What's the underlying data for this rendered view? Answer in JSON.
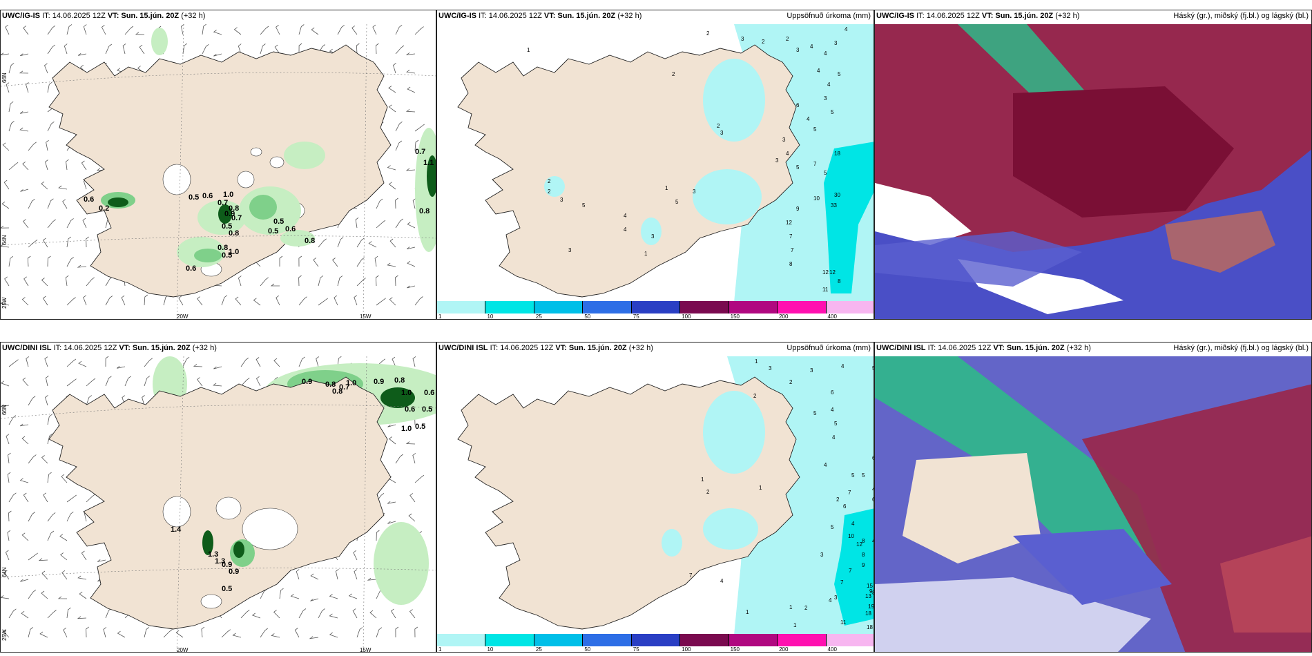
{
  "panels": {
    "p1": {
      "model": "UWC/IG-IS",
      "it": "IT: 14.06.2025 12Z",
      "vt": "VT: Sun. 15.jún. 20Z",
      "lead": "(+32 h)"
    },
    "p2": {
      "model": "UWC/IG-IS",
      "it": "IT: 14.06.2025 12Z",
      "vt": "VT: Sun. 15.jún. 20Z",
      "lead": "(+32 h)",
      "title": "Uppsöfnuð úrkoma (mm)"
    },
    "p3": {
      "model": "UWC/IG-IS",
      "it": "IT: 14.06.2025 12Z",
      "vt": "VT: Sun. 15.jún. 20Z",
      "lead": "(+32 h)",
      "title": "Háský (gr.), miðský (fj.bl.) og lágský (bl.)"
    },
    "p4": {
      "model": "UWC/DINI ISL",
      "it": "IT: 14.06.2025 12Z",
      "vt": "VT: Sun. 15.jún. 20Z",
      "lead": "(+32 h)"
    },
    "p5": {
      "model": "UWC/DINI ISL",
      "it": "IT: 14.06.2025 12Z",
      "vt": "VT: Sun. 15.jún. 20Z",
      "lead": "(+32 h)",
      "title": "Uppsöfnuð úrkoma (mm)"
    },
    "p6": {
      "model": "UWC/DINI ISL",
      "it": "IT: 14.06.2025 12Z",
      "vt": "VT: Sun. 15.jún. 20Z",
      "lead": "(+32 h)",
      "title": "Háský (gr.), miðský (fj.bl.) og lágský (bl.)"
    }
  },
  "axes": {
    "lat66": "66N",
    "lat64": "64N",
    "lon25": "25W",
    "lon20": "20W",
    "lon15": "15W"
  },
  "legend": {
    "labels": [
      "1",
      "10",
      "25",
      "50",
      "75",
      "100",
      "150",
      "200",
      "400"
    ],
    "colors": [
      "#b0f5f5",
      "#00e5e5",
      "#00bfe8",
      "#2d6ee6",
      "#2a3fc4",
      "#7a0a4f",
      "#b00880",
      "#ff10b0",
      "#f7b6f0"
    ]
  },
  "values": {
    "p1_precip": [
      "0.6",
      "0.2",
      "0.5",
      "0.6",
      "1.0",
      "0.7",
      "0.8",
      "0.9",
      "0.7",
      "0.5",
      "0.8",
      "1.0",
      "0.8",
      "0.5",
      "0.5",
      "0.6",
      "0.8",
      "0.5",
      "0.6",
      "0.7",
      "1.1",
      "0.8"
    ],
    "p2_accum": [
      "1",
      "2",
      "2",
      "3",
      "2",
      "2",
      "3",
      "4",
      "4",
      "4",
      "3",
      "4",
      "5",
      "4",
      "3",
      "5",
      "4",
      "6",
      "5",
      "3",
      "2",
      "3",
      "4",
      "3",
      "5",
      "7",
      "5",
      "18",
      "30",
      "33",
      "10",
      "9",
      "12",
      "7",
      "7",
      "8",
      "12",
      "12",
      "11",
      "8",
      "1",
      "3",
      "5",
      "2",
      "2",
      "3",
      "5",
      "3",
      "1",
      "3",
      "4",
      "4"
    ],
    "p4_precip": [
      "0.9",
      "0.8",
      "0.8",
      "0.7",
      "1.0",
      "0.9",
      "0.8",
      "1.0",
      "0.6",
      "0.5",
      "0.6",
      "0.5",
      "1.0",
      "1.4",
      "1.3",
      "1.3",
      "0.9",
      "0.9",
      "0.5"
    ],
    "p5_accum": [
      "1",
      "3",
      "2",
      "2",
      "3",
      "4",
      "5",
      "6",
      "4",
      "5",
      "5",
      "4",
      "7",
      "6",
      "4",
      "5",
      "5",
      "4",
      "6",
      "2",
      "3",
      "4",
      "6",
      "5",
      "4",
      "10",
      "8",
      "12",
      "8",
      "9",
      "15",
      "13",
      "19",
      "18",
      "18",
      "11",
      "13",
      "7",
      "7",
      "9",
      "8",
      "1",
      "1",
      "1",
      "2",
      "3",
      "4",
      "7",
      "4",
      "1",
      "1",
      "2"
    ]
  },
  "colors": {
    "land": "#f1e3d3",
    "coast": "#222222",
    "precip_light": "#c6eec2",
    "precip_mid": "#7fd08a",
    "precip_dark": "#0e5c1a",
    "accum_light": "#b0f5f5",
    "accum_mid": "#00e5e5",
    "cloud_high": "#0aa878",
    "cloud_mid": "#a01844",
    "cloud_low": "#3d44c2"
  }
}
